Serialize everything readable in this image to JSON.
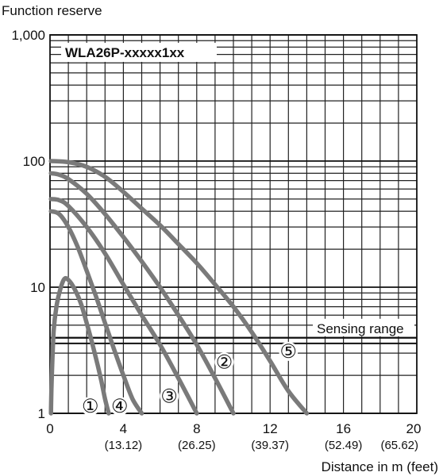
{
  "chart_data": {
    "type": "line",
    "title": "WLA26P-xxxxx1xx",
    "ylabel": "Function reserve",
    "xlabel": "Distance in m (feet)",
    "y_scale": "log",
    "ylim": [
      1,
      1000
    ],
    "xlim": [
      0,
      20
    ],
    "y_ticks": [
      {
        "value": 1,
        "label": "1"
      },
      {
        "value": 10,
        "label": "10"
      },
      {
        "value": 100,
        "label": "100"
      },
      {
        "value": 1000,
        "label": "1,000"
      }
    ],
    "x_ticks": [
      {
        "value": 0,
        "label": "0",
        "sub": ""
      },
      {
        "value": 4,
        "label": "4",
        "sub": "(13.12)"
      },
      {
        "value": 8,
        "label": "8",
        "sub": "(26.25)"
      },
      {
        "value": 12,
        "label": "12",
        "sub": "(39.37)"
      },
      {
        "value": 16,
        "label": "16",
        "sub": "(52.49)"
      },
      {
        "value": 20,
        "label": "20",
        "sub": "(65.62)"
      }
    ],
    "grid": true,
    "sensing_range": {
      "label": "Sensing range",
      "value": 3.8
    },
    "series": [
      {
        "marker": "①",
        "marker_at": [
          2.2,
          1.14
        ],
        "x": [
          0.05,
          0.1,
          0.2,
          0.35,
          0.55,
          0.8,
          1.1,
          1.4,
          1.7,
          2.0,
          2.3,
          2.6,
          2.8,
          3.0,
          3.2
        ],
        "y": [
          1.0,
          2.0,
          4.5,
          7.0,
          9.5,
          11.7,
          11.0,
          9.3,
          7.3,
          5.2,
          3.6,
          2.4,
          1.8,
          1.3,
          1.0
        ]
      },
      {
        "marker": "④",
        "marker_at": [
          3.8,
          1.14
        ],
        "x": [
          0.05,
          0.5,
          1.0,
          1.5,
          2.0,
          2.5,
          3.0,
          3.5,
          4.0,
          4.5,
          5.0
        ],
        "y": [
          40,
          38,
          30,
          21,
          13.5,
          8.5,
          5.2,
          3.2,
          2.0,
          1.3,
          1.0
        ]
      },
      {
        "marker": "③",
        "marker_at": [
          6.5,
          1.37
        ],
        "x": [
          0.05,
          0.5,
          1.0,
          2.0,
          3.0,
          4.0,
          5.0,
          6.0,
          7.0,
          8.0
        ],
        "y": [
          50,
          49,
          44,
          30,
          18.5,
          10.5,
          6.0,
          3.5,
          1.9,
          1.0
        ]
      },
      {
        "marker": "②",
        "marker_at": [
          9.5,
          2.55
        ],
        "x": [
          0.05,
          0.5,
          1.0,
          2.0,
          3.0,
          4.0,
          5.0,
          6.0,
          7.0,
          8.0,
          9.0,
          10.0
        ],
        "y": [
          80,
          78,
          72,
          55,
          38,
          25,
          16,
          10,
          6.0,
          3.5,
          1.9,
          1.0
        ]
      },
      {
        "marker": "⑤",
        "marker_at": [
          13.0,
          3.1
        ],
        "x": [
          0.05,
          1.0,
          2.0,
          3.0,
          4.0,
          5.0,
          6.0,
          7.0,
          8.0,
          9.0,
          10.0,
          11.0,
          12.0,
          13.0,
          14.0
        ],
        "y": [
          100,
          98,
          90,
          75,
          57,
          42,
          31,
          22,
          15.5,
          10.5,
          7.0,
          4.4,
          2.6,
          1.5,
          1.0
        ]
      }
    ]
  }
}
